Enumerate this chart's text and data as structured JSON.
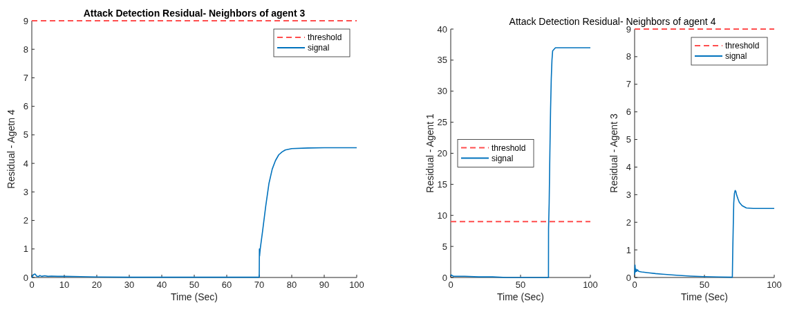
{
  "chart_data": [
    {
      "type": "line",
      "title": "Attack Detection Residual- Neighbors of agent 3",
      "xlabel": "Time (Sec)",
      "ylabel": "Residual - Agetn 4",
      "xlim": [
        0,
        100
      ],
      "ylim": [
        0,
        9
      ],
      "xticks": [
        0,
        10,
        20,
        30,
        40,
        50,
        60,
        70,
        80,
        90,
        100
      ],
      "yticks": [
        0,
        1,
        2,
        3,
        4,
        5,
        6,
        7,
        8,
        9
      ],
      "legend": "top right",
      "grid": false,
      "ref_lines": [
        {
          "axis": "y",
          "value": 9,
          "label": "threshold",
          "color": "#ff4d4d",
          "line_style": "dashed"
        }
      ],
      "series": [
        {
          "name": "signal",
          "color": "#0072bd",
          "line_style": "solid",
          "x": [
            0,
            0.5,
            1,
            1.5,
            2,
            2.5,
            3,
            4,
            5,
            6,
            8,
            10,
            15,
            20,
            30,
            40,
            50,
            60,
            70,
            70.05,
            70.1,
            70.3,
            71,
            72,
            73,
            74,
            75,
            76,
            77,
            78,
            80,
            85,
            90,
            100
          ],
          "values": [
            0,
            0.1,
            0.12,
            0.05,
            0.03,
            0.07,
            0.04,
            0.06,
            0.04,
            0.05,
            0.04,
            0.04,
            0.03,
            0.02,
            0.01,
            0.01,
            0.01,
            0.01,
            0.01,
            1.0,
            0.75,
            1.0,
            1.6,
            2.5,
            3.3,
            3.8,
            4.1,
            4.3,
            4.4,
            4.47,
            4.52,
            4.54,
            4.55,
            4.55
          ]
        }
      ]
    },
    {
      "type": "line",
      "title": "Attack Detection Residual- Neighbors of agent 4",
      "xlabel": "Time (Sec)",
      "ylabel": "Residual - Agent 1",
      "xlim": [
        0,
        100
      ],
      "ylim": [
        0,
        40
      ],
      "xticks": [
        0,
        50,
        100
      ],
      "yticks": [
        0,
        5,
        10,
        15,
        20,
        25,
        30,
        35,
        40
      ],
      "legend": "left",
      "grid": false,
      "ref_lines": [
        {
          "axis": "y",
          "value": 9,
          "label": "threshold",
          "color": "#ff4d4d",
          "line_style": "dashed"
        }
      ],
      "series": [
        {
          "name": "signal",
          "color": "#0072bd",
          "line_style": "solid",
          "x": [
            0,
            0.5,
            1,
            2,
            5,
            10,
            20,
            30,
            40,
            50,
            60,
            70,
            70.05,
            70.5,
            71,
            71.5,
            72,
            72.5,
            73,
            75,
            80,
            90,
            100
          ],
          "values": [
            0.3,
            0.4,
            0.3,
            0.2,
            0.2,
            0.2,
            0.1,
            0.1,
            0,
            0,
            0,
            0,
            7.8,
            12,
            20,
            27,
            32,
            35,
            36.5,
            37,
            37,
            37,
            37
          ]
        }
      ]
    },
    {
      "type": "line",
      "xlabel": "Time (Sec)",
      "ylabel": "Residual - Agent 3",
      "xlim": [
        0,
        100
      ],
      "ylim": [
        0,
        9
      ],
      "xticks": [
        0,
        50,
        100
      ],
      "yticks": [
        0,
        1,
        2,
        3,
        4,
        5,
        6,
        7,
        8,
        9
      ],
      "legend": "top right",
      "grid": false,
      "ref_lines": [
        {
          "axis": "y",
          "value": 9,
          "label": "threshold",
          "color": "#ff4d4d",
          "line_style": "dashed"
        }
      ],
      "series": [
        {
          "name": "signal",
          "color": "#0072bd",
          "line_style": "solid",
          "x": [
            0,
            0.3,
            0.6,
            1,
            1.5,
            2,
            3,
            5,
            10,
            15,
            20,
            30,
            40,
            50,
            60,
            70,
            70.3,
            70.7,
            71,
            71.5,
            72,
            72.5,
            73,
            74,
            75,
            77,
            80,
            85,
            90,
            100
          ],
          "values": [
            0.1,
            0.45,
            0.2,
            0.3,
            0.22,
            0.28,
            0.22,
            0.2,
            0.17,
            0.14,
            0.12,
            0.08,
            0.05,
            0.03,
            0.02,
            0.01,
            1.0,
            2.0,
            2.7,
            3.05,
            3.15,
            3.12,
            3.0,
            2.85,
            2.72,
            2.6,
            2.52,
            2.5,
            2.5,
            2.5
          ]
        }
      ]
    }
  ]
}
